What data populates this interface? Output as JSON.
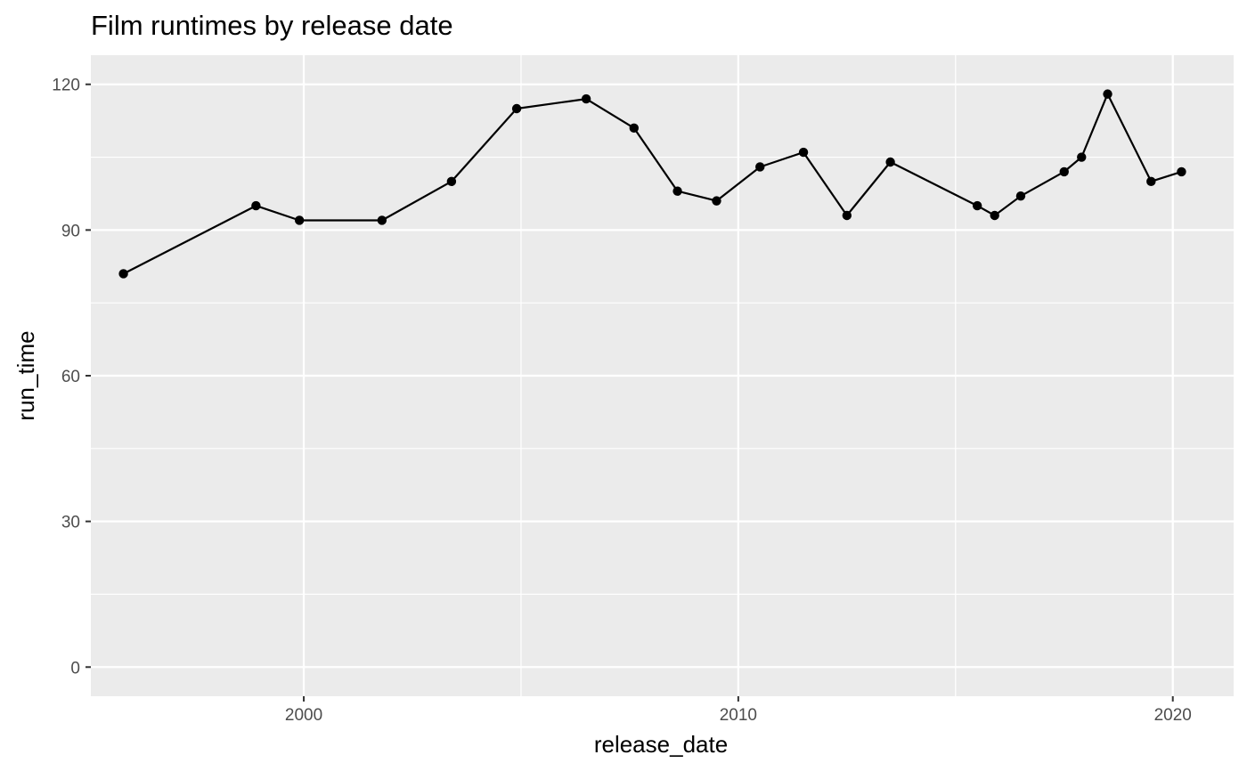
{
  "chart_data": {
    "type": "line",
    "title": "Film runtimes by release date",
    "xlabel": "release_date",
    "ylabel": "run_time",
    "xlim": [
      1995.1,
      2021.4
    ],
    "ylim": [
      -6,
      126
    ],
    "x_ticks": [
      2000,
      2010,
      2020
    ],
    "x_tick_labels": [
      "2000",
      "2010",
      "2020"
    ],
    "y_ticks": [
      0,
      30,
      60,
      90,
      120
    ],
    "y_tick_labels": [
      "0",
      "30",
      "60",
      "90",
      "120"
    ],
    "grid": true,
    "legend": "none",
    "colors": {
      "panel": "#ebebeb",
      "grid": "#ffffff",
      "line": "#000000",
      "point": "#000000",
      "tick": "#333333"
    },
    "points": [
      {
        "x": 1995.85,
        "y": 81
      },
      {
        "x": 1998.9,
        "y": 95
      },
      {
        "x": 1999.9,
        "y": 92
      },
      {
        "x": 2001.8,
        "y": 92
      },
      {
        "x": 2003.4,
        "y": 100
      },
      {
        "x": 2004.9,
        "y": 115
      },
      {
        "x": 2006.5,
        "y": 117
      },
      {
        "x": 2007.6,
        "y": 111
      },
      {
        "x": 2008.6,
        "y": 98
      },
      {
        "x": 2009.5,
        "y": 96
      },
      {
        "x": 2010.5,
        "y": 103
      },
      {
        "x": 2011.5,
        "y": 106
      },
      {
        "x": 2012.5,
        "y": 93
      },
      {
        "x": 2013.5,
        "y": 104
      },
      {
        "x": 2015.5,
        "y": 95
      },
      {
        "x": 2015.9,
        "y": 93
      },
      {
        "x": 2016.5,
        "y": 97
      },
      {
        "x": 2017.5,
        "y": 102
      },
      {
        "x": 2017.9,
        "y": 105
      },
      {
        "x": 2018.5,
        "y": 118
      },
      {
        "x": 2019.5,
        "y": 100
      },
      {
        "x": 2020.2,
        "y": 102
      }
    ]
  }
}
